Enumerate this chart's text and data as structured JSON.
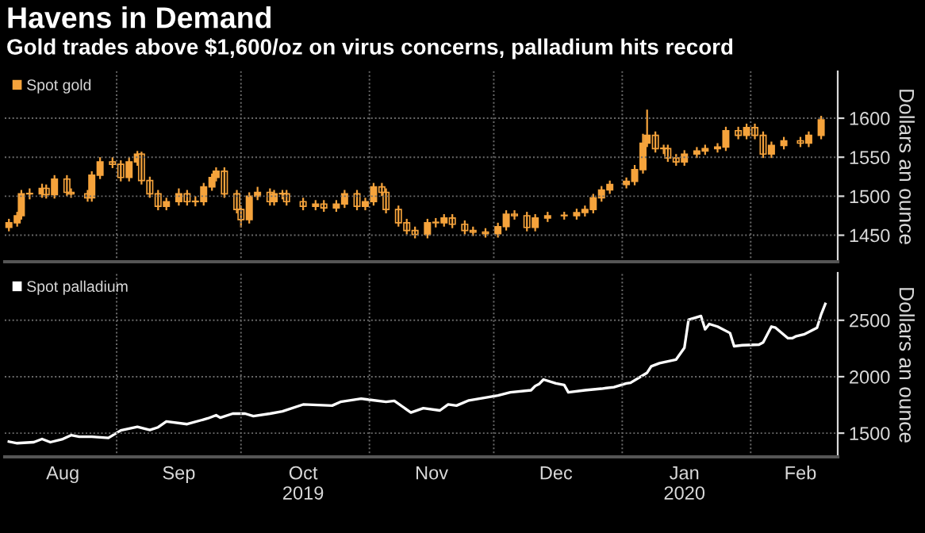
{
  "chart_data": [
    {
      "type": "candlestick",
      "title": "Havens in Demand",
      "subtitle": "Gold trades above $1,600/oz on virus concerns, palladium hits record",
      "ylabel": "Dollars an ounce",
      "x": [
        "2019-08-06",
        "2019-08-08",
        "2019-08-09",
        "2019-08-11",
        "2019-08-14",
        "2019-08-15",
        "2019-08-17",
        "2019-08-20",
        "2019-08-21",
        "2019-08-25",
        "2019-08-26",
        "2019-08-28",
        "2019-08-31",
        "2019-09-02",
        "2019-09-04",
        "2019-09-06",
        "2019-09-07",
        "2019-09-09",
        "2019-09-11",
        "2019-09-13",
        "2019-09-16",
        "2019-09-18",
        "2019-09-20",
        "2019-09-22",
        "2019-09-24",
        "2019-09-25",
        "2019-09-27",
        "2019-09-30",
        "2019-10-01",
        "2019-10-03",
        "2019-10-05",
        "2019-10-08",
        "2019-10-09",
        "2019-10-11",
        "2019-10-12",
        "2019-10-16",
        "2019-10-19",
        "2019-10-21",
        "2019-10-24",
        "2019-10-26",
        "2019-10-29",
        "2019-10-31",
        "2019-11-02",
        "2019-11-04",
        "2019-11-05",
        "2019-11-08",
        "2019-11-10",
        "2019-11-12",
        "2019-11-15",
        "2019-11-17",
        "2019-11-19",
        "2019-11-21",
        "2019-11-24",
        "2019-11-26",
        "2019-11-29",
        "2019-12-02",
        "2019-12-04",
        "2019-12-06",
        "2019-12-09",
        "2019-12-11",
        "2019-12-14",
        "2019-12-18",
        "2019-12-21",
        "2019-12-23",
        "2019-12-25",
        "2019-12-27",
        "2019-12-29",
        "2020-01-02",
        "2020-01-04",
        "2020-01-06",
        "2020-01-07",
        "2020-01-09",
        "2020-01-11",
        "2020-01-12",
        "2020-01-14",
        "2020-01-16",
        "2020-01-19",
        "2020-01-21",
        "2020-01-24",
        "2020-01-26",
        "2020-01-29",
        "2020-01-31",
        "2020-02-02",
        "2020-02-04",
        "2020-02-06",
        "2020-02-09",
        "2020-02-13",
        "2020-02-15",
        "2020-02-18"
      ],
      "series": [
        {
          "name": "Spot gold",
          "color": "#f5a33c",
          "ohlc": [
            [
              1460,
              1471,
              1455,
              1466
            ],
            [
              1466,
              1480,
              1461,
              1475
            ],
            [
              1475,
              1508,
              1470,
              1503
            ],
            [
              1503,
              1510,
              1496,
              1503
            ],
            [
              1503,
              1516,
              1498,
              1510
            ],
            [
              1510,
              1515,
              1497,
              1502
            ],
            [
              1502,
              1527,
              1497,
              1522
            ],
            [
              1522,
              1527,
              1500,
              1505
            ],
            [
              1505,
              1510,
              1498,
              1503
            ],
            [
              1503,
              1508,
              1493,
              1498
            ],
            [
              1498,
              1532,
              1493,
              1527
            ],
            [
              1527,
              1550,
              1522,
              1544
            ],
            [
              1544,
              1550,
              1536,
              1541
            ],
            [
              1541,
              1546,
              1519,
              1524
            ],
            [
              1524,
              1550,
              1519,
              1544
            ],
            [
              1544,
              1558,
              1539,
              1554
            ],
            [
              1554,
              1557,
              1515,
              1520
            ],
            [
              1520,
              1525,
              1498,
              1503
            ],
            [
              1503,
              1508,
              1482,
              1487
            ],
            [
              1487,
              1498,
              1482,
              1493
            ],
            [
              1493,
              1510,
              1488,
              1503
            ],
            [
              1503,
              1508,
              1488,
              1493
            ],
            [
              1493,
              1500,
              1487,
              1493
            ],
            [
              1493,
              1517,
              1488,
              1512
            ],
            [
              1512,
              1529,
              1507,
              1524
            ],
            [
              1524,
              1537,
              1519,
              1532
            ],
            [
              1532,
              1537,
              1498,
              1503
            ],
            [
              1503,
              1508,
              1478,
              1483
            ],
            [
              1483,
              1488,
              1460,
              1470
            ],
            [
              1470,
              1505,
              1465,
              1500
            ],
            [
              1500,
              1512,
              1495,
              1505
            ],
            [
              1505,
              1510,
              1488,
              1493
            ],
            [
              1493,
              1508,
              1488,
              1503
            ],
            [
              1503,
              1508,
              1496,
              1503
            ],
            [
              1503,
              1508,
              1488,
              1493
            ],
            [
              1493,
              1498,
              1482,
              1487
            ],
            [
              1487,
              1495,
              1482,
              1490
            ],
            [
              1490,
              1495,
              1480,
              1485
            ],
            [
              1485,
              1495,
              1480,
              1490
            ],
            [
              1490,
              1508,
              1485,
              1503
            ],
            [
              1503,
              1508,
              1482,
              1487
            ],
            [
              1487,
              1498,
              1482,
              1493
            ],
            [
              1493,
              1517,
              1488,
              1512
            ],
            [
              1512,
              1517,
              1500,
              1505
            ],
            [
              1505,
              1510,
              1478,
              1483
            ],
            [
              1483,
              1488,
              1461,
              1466
            ],
            [
              1466,
              1471,
              1451,
              1456
            ],
            [
              1456,
              1461,
              1446,
              1451
            ],
            [
              1451,
              1471,
              1446,
              1466
            ],
            [
              1466,
              1472,
              1460,
              1466
            ],
            [
              1466,
              1477,
              1461,
              1472
            ],
            [
              1472,
              1477,
              1459,
              1464
            ],
            [
              1464,
              1469,
              1451,
              1456
            ],
            [
              1456,
              1461,
              1449,
              1454
            ],
            [
              1454,
              1459,
              1447,
              1452
            ],
            [
              1452,
              1466,
              1447,
              1461
            ],
            [
              1461,
              1482,
              1456,
              1477
            ],
            [
              1477,
              1482,
              1470,
              1475
            ],
            [
              1475,
              1480,
              1455,
              1460
            ],
            [
              1460,
              1477,
              1455,
              1472
            ],
            [
              1472,
              1480,
              1467,
              1475
            ],
            [
              1475,
              1480,
              1470,
              1475
            ],
            [
              1475,
              1484,
              1470,
              1479
            ],
            [
              1479,
              1488,
              1474,
              1483
            ],
            [
              1483,
              1503,
              1478,
              1498
            ],
            [
              1498,
              1513,
              1493,
              1508
            ],
            [
              1508,
              1520,
              1503,
              1515
            ],
            [
              1515,
              1524,
              1510,
              1519
            ],
            [
              1519,
              1540,
              1514,
              1534
            ],
            [
              1534,
              1580,
              1529,
              1568
            ],
            [
              1568,
              1611,
              1563,
              1578
            ],
            [
              1578,
              1583,
              1556,
              1561
            ],
            [
              1561,
              1566,
              1554,
              1561
            ],
            [
              1561,
              1566,
              1544,
              1549
            ],
            [
              1549,
              1554,
              1539,
              1544
            ],
            [
              1544,
              1559,
              1539,
              1554
            ],
            [
              1554,
              1563,
              1549,
              1558
            ],
            [
              1558,
              1566,
              1553,
              1561
            ],
            [
              1561,
              1568,
              1556,
              1563
            ],
            [
              1563,
              1589,
              1558,
              1584
            ],
            [
              1584,
              1589,
              1573,
              1578
            ],
            [
              1578,
              1593,
              1573,
              1588
            ],
            [
              1588,
              1593,
              1573,
              1578
            ],
            [
              1578,
              1583,
              1549,
              1554
            ],
            [
              1554,
              1570,
              1549,
              1565
            ],
            [
              1565,
              1576,
              1560,
              1571
            ],
            [
              1571,
              1576,
              1563,
              1568
            ],
            [
              1568,
              1583,
              1563,
              1578
            ],
            [
              1578,
              1603,
              1573,
              1598
            ]
          ]
        }
      ],
      "xlim": [
        "2019-08-05",
        "2020-02-22"
      ],
      "xticks": [
        {
          "value": "2019-09-01",
          "label": null
        },
        {
          "value": "2019-10-01",
          "label": null
        },
        {
          "value": "2019-11-01",
          "label": null
        },
        {
          "value": "2019-12-01",
          "label": null
        },
        {
          "value": "2020-01-01",
          "label": null
        },
        {
          "value": "2020-02-01",
          "label": null
        }
      ],
      "ylim": [
        1416,
        1660
      ],
      "yticks": [
        1450,
        1500,
        1550,
        1600
      ],
      "tick_labels": "y",
      "grid": true,
      "legend": "top left"
    },
    {
      "type": "line",
      "ylabel": "Dollars an ounce",
      "x": [
        "2019-08-06",
        "2019-08-08",
        "2019-08-12",
        "2019-08-14",
        "2019-08-16",
        "2019-08-19",
        "2019-08-21",
        "2019-08-23",
        "2019-08-26",
        "2019-08-30",
        "2019-09-02",
        "2019-09-06",
        "2019-09-09",
        "2019-09-11",
        "2019-09-13",
        "2019-09-18",
        "2019-09-23",
        "2019-09-25",
        "2019-09-26",
        "2019-09-29",
        "2019-10-02",
        "2019-10-04",
        "2019-10-08",
        "2019-10-11",
        "2019-10-16",
        "2019-10-23",
        "2019-10-25",
        "2019-10-30",
        "2019-11-01",
        "2019-11-05",
        "2019-11-07",
        "2019-11-11",
        "2019-11-14",
        "2019-11-18",
        "2019-11-20",
        "2019-11-22",
        "2019-11-25",
        "2019-12-02",
        "2019-12-05",
        "2019-12-10",
        "2019-12-11",
        "2019-12-12",
        "2019-12-13",
        "2019-12-16",
        "2019-12-18",
        "2019-12-19",
        "2019-12-23",
        "2019-12-27",
        "2019-12-30",
        "2020-01-02",
        "2020-01-03",
        "2020-01-07",
        "2020-01-08",
        "2020-01-10",
        "2020-01-14",
        "2020-01-16",
        "2020-01-17",
        "2020-01-20",
        "2020-01-21",
        "2020-01-22",
        "2020-01-24",
        "2020-01-27",
        "2020-01-28",
        "2020-01-30",
        "2020-02-03",
        "2020-02-04",
        "2020-02-06",
        "2020-02-07",
        "2020-02-10",
        "2020-02-11",
        "2020-02-12",
        "2020-02-14",
        "2020-02-17",
        "2020-02-18",
        "2020-02-19"
      ],
      "series": [
        {
          "name": "Spot palladium",
          "color": "#ffffff",
          "values": [
            1425,
            1411,
            1420,
            1448,
            1420,
            1448,
            1482,
            1468,
            1468,
            1458,
            1524,
            1556,
            1528,
            1552,
            1603,
            1580,
            1631,
            1659,
            1637,
            1673,
            1673,
            1651,
            1673,
            1693,
            1754,
            1744,
            1777,
            1806,
            1796,
            1777,
            1786,
            1683,
            1721,
            1701,
            1754,
            1744,
            1790,
            1834,
            1862,
            1880,
            1918,
            1937,
            1975,
            1941,
            1927,
            1862,
            1880,
            1894,
            1908,
            1941,
            1946,
            2035,
            2092,
            2120,
            2152,
            2256,
            2504,
            2538,
            2420,
            2467,
            2444,
            2387,
            2270,
            2279,
            2284,
            2303,
            2444,
            2434,
            2341,
            2341,
            2359,
            2377,
            2434,
            2552,
            2645
          ]
        }
      ],
      "xlim": [
        "2019-08-05",
        "2020-02-22"
      ],
      "xticks": [
        {
          "value": "2019-08-19",
          "label": "Aug"
        },
        {
          "value": "2019-09-01",
          "label": null
        },
        {
          "value": "2019-09-16",
          "label": "Sep"
        },
        {
          "value": "2019-10-01",
          "label": null
        },
        {
          "value": "2019-10-16",
          "label": "Oct\n2019"
        },
        {
          "value": "2019-11-01",
          "label": null
        },
        {
          "value": "2019-11-16",
          "label": "Nov"
        },
        {
          "value": "2019-12-01",
          "label": null
        },
        {
          "value": "2019-12-16",
          "label": "Dec"
        },
        {
          "value": "2020-01-01",
          "label": null
        },
        {
          "value": "2020-01-16",
          "label": "Jan\n2020"
        },
        {
          "value": "2020-02-01",
          "label": null
        },
        {
          "value": "2020-02-13",
          "label": "Feb"
        }
      ],
      "ylim": [
        1290,
        2920
      ],
      "yticks": [
        1500,
        2000,
        2500
      ],
      "grid": true,
      "legend": "top left"
    }
  ]
}
